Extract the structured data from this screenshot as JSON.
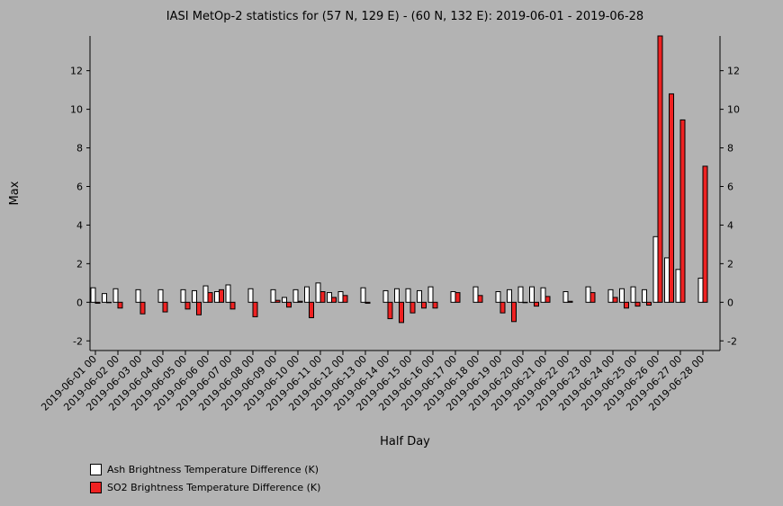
{
  "chart_data": {
    "type": "bar",
    "title": "IASI MetOp-2 statistics for (57 N, 129 E) - (60 N, 132 E): 2019-06-01 - 2019-06-28",
    "xlabel": "Half Day",
    "ylabel": "Max",
    "ylim": [
      -2.5,
      13.8
    ],
    "yticks": [
      -2,
      0,
      2,
      4,
      6,
      8,
      10,
      12
    ],
    "categories": [
      "2019-06-01 00",
      "2019-06-01 12",
      "2019-06-02 00",
      "2019-06-02 12",
      "2019-06-03 00",
      "2019-06-03 12",
      "2019-06-04 00",
      "2019-06-04 12",
      "2019-06-05 00",
      "2019-06-05 12",
      "2019-06-06 00",
      "2019-06-06 12",
      "2019-06-07 00",
      "2019-06-07 12",
      "2019-06-08 00",
      "2019-06-08 12",
      "2019-06-09 00",
      "2019-06-09 12",
      "2019-06-10 00",
      "2019-06-10 12",
      "2019-06-11 00",
      "2019-06-11 12",
      "2019-06-12 00",
      "2019-06-12 12",
      "2019-06-13 00",
      "2019-06-13 12",
      "2019-06-14 00",
      "2019-06-14 12",
      "2019-06-15 00",
      "2019-06-15 12",
      "2019-06-16 00",
      "2019-06-16 12",
      "2019-06-17 00",
      "2019-06-17 12",
      "2019-06-18 00",
      "2019-06-18 12",
      "2019-06-19 00",
      "2019-06-19 12",
      "2019-06-20 00",
      "2019-06-20 12",
      "2019-06-21 00",
      "2019-06-21 12",
      "2019-06-22 00",
      "2019-06-22 12",
      "2019-06-23 00",
      "2019-06-23 12",
      "2019-06-24 00",
      "2019-06-24 12",
      "2019-06-25 00",
      "2019-06-25 12",
      "2019-06-26 00",
      "2019-06-26 12",
      "2019-06-27 00",
      "2019-06-27 12",
      "2019-06-28 00",
      "2019-06-28 12"
    ],
    "xtick_labels": [
      "2019-06-01 00",
      "2019-06-02 00",
      "2019-06-03 00",
      "2019-06-04 00",
      "2019-06-05 00",
      "2019-06-06 00",
      "2019-06-07 00",
      "2019-06-08 00",
      "2019-06-09 00",
      "2019-06-10 00",
      "2019-06-11 00",
      "2019-06-12 00",
      "2019-06-13 00",
      "2019-06-14 00",
      "2019-06-15 00",
      "2019-06-16 00",
      "2019-06-17 00",
      "2019-06-18 00",
      "2019-06-19 00",
      "2019-06-20 00",
      "2019-06-21 00",
      "2019-06-22 00",
      "2019-06-23 00",
      "2019-06-24 00",
      "2019-06-25 00",
      "2019-06-26 00",
      "2019-06-27 00",
      "2019-06-28 00"
    ],
    "series": [
      {
        "name": "Ash Brightness Temperature Difference (K)",
        "color": "#ffffff",
        "values": [
          0.75,
          0.45,
          0.7,
          null,
          0.65,
          null,
          0.65,
          null,
          0.65,
          0.6,
          0.85,
          0.55,
          0.9,
          null,
          0.7,
          null,
          0.65,
          0.25,
          0.65,
          0.8,
          1.0,
          0.5,
          0.55,
          null,
          0.75,
          null,
          0.6,
          0.7,
          0.7,
          0.6,
          0.8,
          null,
          0.55,
          null,
          0.8,
          null,
          0.55,
          0.65,
          0.8,
          0.8,
          0.75,
          null,
          0.55,
          null,
          0.8,
          null,
          0.65,
          0.7,
          0.8,
          0.65,
          3.4,
          2.3,
          1.7,
          null,
          1.25,
          null
        ]
      },
      {
        "name": "SO2 Brightness Temperature Difference (K)",
        "color": "#ee2222",
        "values": [
          -0.05,
          0.0,
          -0.3,
          null,
          -0.6,
          null,
          -0.5,
          null,
          -0.35,
          -0.65,
          0.5,
          0.65,
          -0.35,
          null,
          -0.75,
          null,
          0.1,
          -0.25,
          0.05,
          -0.8,
          0.55,
          0.25,
          0.35,
          null,
          -0.05,
          null,
          -0.85,
          -1.05,
          -0.55,
          -0.3,
          -0.3,
          null,
          0.5,
          null,
          0.35,
          null,
          -0.55,
          -1.0,
          0.0,
          -0.2,
          0.3,
          null,
          0.05,
          null,
          0.5,
          null,
          0.25,
          -0.3,
          -0.2,
          -0.15,
          13.8,
          10.8,
          9.45,
          null,
          7.05,
          null
        ]
      }
    ],
    "legend": "bottom-left"
  }
}
